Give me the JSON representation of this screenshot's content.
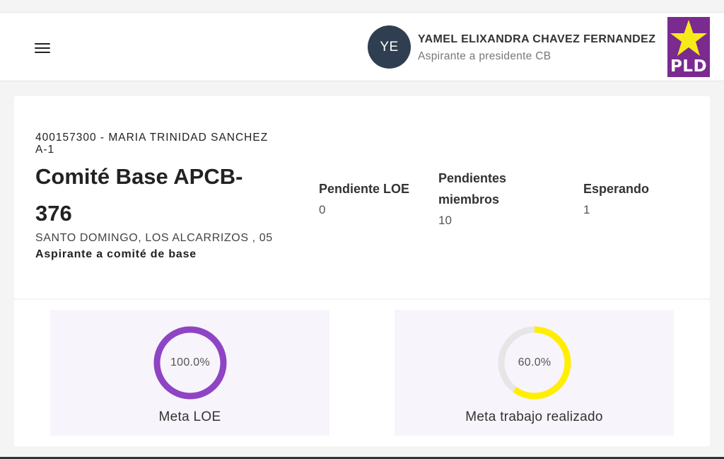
{
  "header": {
    "avatar_initials": "YE",
    "user_name": "YAMEL ELIXANDRA CHAVEZ FERNANDEZ",
    "user_role": "Aspirante a presidente CB",
    "logo_text": "PLD",
    "logo_colors": {
      "background": "#7b2a90",
      "star": "#f7ea1b"
    }
  },
  "committee": {
    "code": "400157300 - MARIA TRINIDAD SANCHEZ A-1",
    "name": "Comité Base APCB-376",
    "location": "SANTO DOMINGO, LOS ALCARRIZOS , 05",
    "type": "Aspirante a comité de base"
  },
  "stats": {
    "loe": {
      "label": "Pendiente LOE",
      "value": "0"
    },
    "members": {
      "label": "Pendientes miembros",
      "value": "10"
    },
    "waiting": {
      "label": "Esperando",
      "value": "1"
    }
  },
  "goals": [
    {
      "label": "Meta LOE",
      "value_text": "100.0%",
      "fraction": 1.0,
      "color": "#8e44c4"
    },
    {
      "label": "Meta trabajo realizado",
      "value_text": "60.0%",
      "fraction": 0.6,
      "color": "#ffee00"
    }
  ],
  "colors": {
    "ring_track": "#e6e6e6",
    "panel_bg": "#f8f4fb"
  },
  "icons": {
    "menu": "hamburger-icon",
    "logo": "star-icon"
  }
}
